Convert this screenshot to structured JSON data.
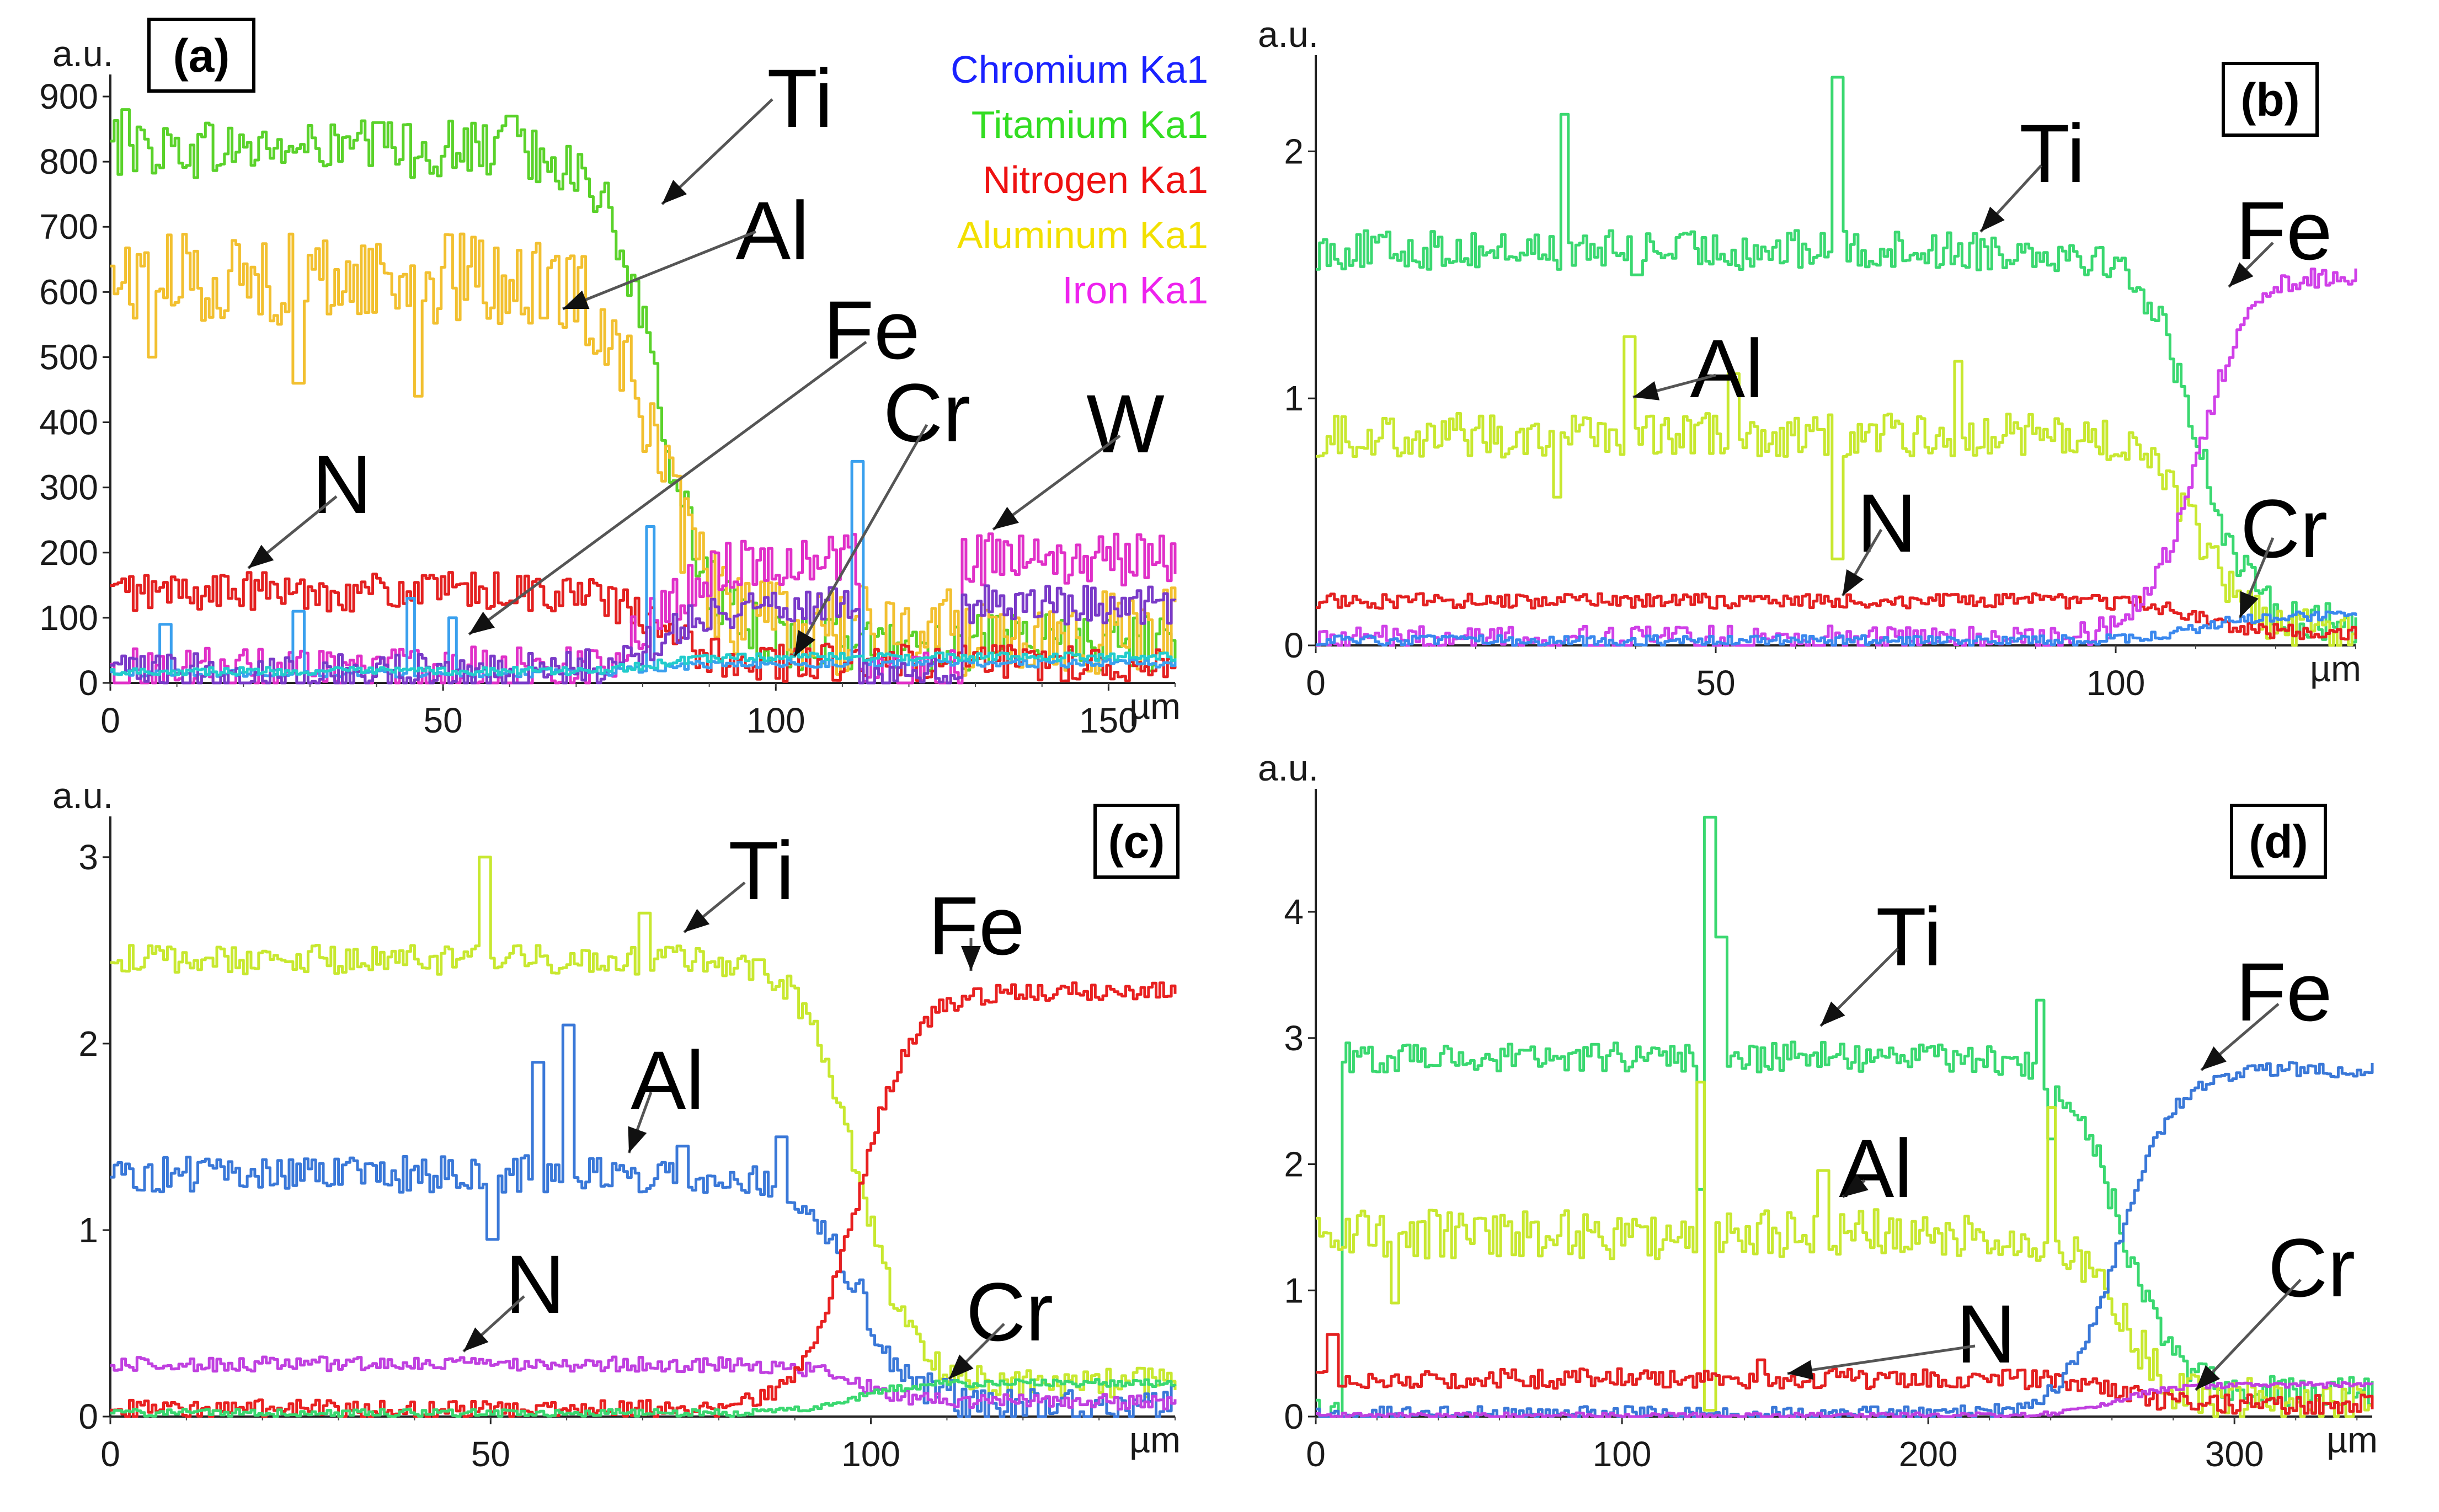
{
  "figure": {
    "description_hidden": true
  },
  "chart_data": [
    {
      "panel": "(a)",
      "type": "line",
      "ylabel": "a.u.",
      "xunit": "µm",
      "xlim": [
        0,
        160
      ],
      "ylim": [
        0,
        900
      ],
      "xticks": [
        0,
        50,
        100,
        150
      ],
      "yticks": [
        0,
        100,
        200,
        300,
        400,
        500,
        600,
        700,
        800,
        900
      ],
      "interface_x": 82,
      "legend": [
        {
          "label": "Chromium Ka1",
          "color": "#1a22ff"
        },
        {
          "label": "Titamium Ka1",
          "color": "#33dd22"
        },
        {
          "label": "Nitrogen Ka1",
          "color": "#ee1111"
        },
        {
          "label": "Aluminum Ka1",
          "color": "#f2e000"
        },
        {
          "label": "Iron Ka1",
          "color": "#ee22ee"
        }
      ],
      "series": [
        {
          "name": "Ti",
          "color": "#5ad22a",
          "before": 820,
          "after": 60,
          "noise": 45,
          "spikes": [
            [
              2,
              880
            ],
            [
              40,
              860
            ],
            [
              60,
              870
            ]
          ]
        },
        {
          "name": "Al",
          "color": "#f2c030",
          "before": 620,
          "after": 80,
          "noise": 70,
          "spikes": [
            [
              6,
              500
            ],
            [
              28,
              460
            ],
            [
              46,
              440
            ],
            [
              65,
              560
            ]
          ]
        },
        {
          "name": "N",
          "color": "#e32020",
          "before": 140,
          "after": 30,
          "noise": 30,
          "spikes": []
        },
        {
          "name": "Fe",
          "color": "#e030c8",
          "before": 15,
          "after": 190,
          "noise": 40,
          "dip": [
            112,
            128,
            10
          ],
          "spikes": []
        },
        {
          "name": "Cr",
          "color": "#3aa0ee",
          "before": 15,
          "after": 30,
          "noise": 6,
          "spikes": [
            [
              8,
              90
            ],
            [
              28,
              110
            ],
            [
              45,
              130
            ],
            [
              51,
              100
            ],
            [
              81,
              240
            ],
            [
              112,
              340
            ]
          ]
        },
        {
          "name": "W",
          "color": "#7a3ac8",
          "before": 15,
          "after": 120,
          "noise": 30,
          "dip": [
            112,
            128,
            10
          ],
          "spikes": []
        },
        {
          "name": "Cr2",
          "color": "#22cccc",
          "before": 18,
          "after": 40,
          "noise": 6,
          "spikes": []
        }
      ],
      "labels": [
        "Ti",
        "Al",
        "Fe",
        "Cr",
        "W",
        "N"
      ],
      "tag": "(a)"
    },
    {
      "panel": "(b)",
      "type": "line",
      "ylabel": "a.u.",
      "xunit": "µm",
      "xlim": [
        0,
        130
      ],
      "ylim": [
        0,
        2.3
      ],
      "xticks": [
        0,
        50,
        100
      ],
      "yticks": [
        0,
        1,
        2
      ],
      "interface_x": 110,
      "series": [
        {
          "name": "Ti",
          "color": "#3ad870",
          "before": 1.6,
          "after": 0.08,
          "noise": 0.08,
          "spikes": [
            [
              31,
              2.15
            ],
            [
              65,
              2.3
            ],
            [
              40,
              1.5
            ]
          ]
        },
        {
          "name": "Al",
          "color": "#c8e830",
          "before": 0.85,
          "after": 0.05,
          "noise": 0.09,
          "spikes": [
            [
              39,
              1.25
            ],
            [
              52,
              1.1
            ],
            [
              65,
              0.35
            ],
            [
              80,
              1.15
            ],
            [
              30,
              0.6
            ]
          ]
        },
        {
          "name": "N",
          "color": "#e32020",
          "before": 0.18,
          "after": 0.05,
          "noise": 0.03,
          "spikes": []
        },
        {
          "name": "Fe",
          "color": "#d040e8",
          "before": 0.03,
          "after": 1.5,
          "noise": 0.05,
          "spikes": []
        },
        {
          "name": "Cr",
          "color": "#3a88ee",
          "before": 0.02,
          "after": 0.12,
          "noise": 0.02,
          "spikes": []
        }
      ],
      "labels": [
        "Ti",
        "Fe",
        "Al",
        "N",
        "Cr"
      ],
      "tag": "(b)"
    },
    {
      "panel": "(c)",
      "type": "line",
      "ylabel": "a.u.",
      "xunit": "µm",
      "xlim": [
        0,
        140
      ],
      "ylim": [
        0,
        3.1
      ],
      "xticks": [
        0,
        50,
        100
      ],
      "yticks": [
        0,
        1,
        2,
        3
      ],
      "interface_x": 98,
      "series": [
        {
          "name": "Ti",
          "color": "#c8e830",
          "before": 2.45,
          "after": 0.18,
          "noise": 0.08,
          "spikes": [
            [
              49,
              3.0
            ],
            [
              70,
              2.7
            ],
            [
              85,
              2.45
            ]
          ]
        },
        {
          "name": "Al",
          "color": "#3a78d8",
          "before": 1.3,
          "after": 0.07,
          "noise": 0.1,
          "spikes": [
            [
              56,
              1.9
            ],
            [
              60,
              2.1
            ],
            [
              75,
              1.45
            ],
            [
              88,
              1.5
            ],
            [
              50,
              0.95
            ]
          ]
        },
        {
          "name": "N",
          "color": "#c040e0",
          "before": 0.28,
          "after": 0.08,
          "noise": 0.04,
          "spikes": []
        },
        {
          "name": "Fe",
          "color": "#e82020",
          "before": 0.04,
          "after": 2.28,
          "noise": 0.05,
          "spikes": []
        },
        {
          "name": "Cr",
          "color": "#3ad870",
          "before": 0.02,
          "after": 0.18,
          "noise": 0.02,
          "spikes": []
        }
      ],
      "labels": [
        "Ti",
        "Fe",
        "Al",
        "N",
        "Cr"
      ],
      "tag": "(c)"
    },
    {
      "panel": "(d)",
      "type": "line",
      "ylabel": "a.u.",
      "xunit": "µm",
      "xlim": [
        0,
        345
      ],
      "ylim": [
        0,
        4.8
      ],
      "xticks": [
        0,
        100,
        200,
        300
      ],
      "yticks": [
        0,
        1,
        2,
        3,
        4
      ],
      "interface_x": 262,
      "series": [
        {
          "name": "Ti",
          "color": "#3ad870",
          "before": 2.85,
          "after": 0.2,
          "noise": 0.12,
          "start_x": 8,
          "spikes": [
            [
              128,
              4.75
            ],
            [
              132,
              3.8
            ],
            [
              125,
              1.8
            ],
            [
              236,
              3.3
            ],
            [
              240,
              2.2
            ]
          ]
        },
        {
          "name": "Al",
          "color": "#c8e830",
          "before": 1.45,
          "after": 0.1,
          "noise": 0.2,
          "spikes": [
            [
              125,
              2.65
            ],
            [
              128,
              0.05
            ],
            [
              165,
              1.95
            ],
            [
              240,
              2.45
            ],
            [
              25,
              0.9
            ]
          ]
        },
        {
          "name": "N",
          "color": "#e32020",
          "before": 0.3,
          "after": 0.1,
          "noise": 0.08,
          "spikes": [
            [
              5,
              0.65
            ],
            [
              145,
              0.45
            ]
          ]
        },
        {
          "name": "Fe",
          "color": "#3a78d8",
          "before": 0.02,
          "after": 2.75,
          "noise": 0.06,
          "spikes": []
        },
        {
          "name": "Cr",
          "color": "#c040e0",
          "before": 0.01,
          "after": 0.25,
          "noise": 0.02,
          "spikes": []
        }
      ],
      "labels": [
        "Ti",
        "Fe",
        "Al",
        "N",
        "Cr"
      ],
      "tag": "(d)"
    }
  ]
}
